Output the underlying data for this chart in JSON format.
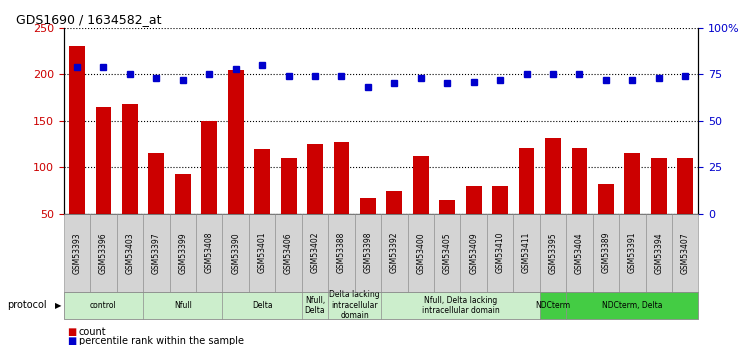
{
  "title": "GDS1690 / 1634582_at",
  "samples": [
    "GSM53393",
    "GSM53396",
    "GSM53403",
    "GSM53397",
    "GSM53399",
    "GSM53408",
    "GSM53390",
    "GSM53401",
    "GSM53406",
    "GSM53402",
    "GSM53388",
    "GSM53398",
    "GSM53392",
    "GSM53400",
    "GSM53405",
    "GSM53409",
    "GSM53410",
    "GSM53411",
    "GSM53395",
    "GSM53404",
    "GSM53389",
    "GSM53391",
    "GSM53394",
    "GSM53407"
  ],
  "counts": [
    230,
    165,
    168,
    115,
    93,
    150,
    205,
    120,
    110,
    125,
    127,
    67,
    75,
    112,
    65,
    80,
    80,
    121,
    131,
    121,
    82,
    115,
    110,
    110
  ],
  "percentiles": [
    79,
    79,
    75,
    73,
    72,
    75,
    78,
    80,
    74,
    74,
    74,
    68,
    70,
    73,
    70,
    71,
    72,
    75,
    75,
    75,
    72,
    72,
    73,
    74
  ],
  "bar_color": "#cc0000",
  "dot_color": "#0000cc",
  "protocol_groups": [
    {
      "label": "control",
      "start": 0,
      "end": 2,
      "color": "#cceecc"
    },
    {
      "label": "Nfull",
      "start": 3,
      "end": 5,
      "color": "#cceecc"
    },
    {
      "label": "Delta",
      "start": 6,
      "end": 8,
      "color": "#cceecc"
    },
    {
      "label": "Nfull,\nDelta",
      "start": 9,
      "end": 9,
      "color": "#cceecc"
    },
    {
      "label": "Delta lacking\nintracellular\ndomain",
      "start": 10,
      "end": 11,
      "color": "#cceecc"
    },
    {
      "label": "Nfull, Delta lacking\nintracellular domain",
      "start": 12,
      "end": 17,
      "color": "#cceecc"
    },
    {
      "label": "NDCterm",
      "start": 18,
      "end": 18,
      "color": "#44cc44"
    },
    {
      "label": "NDCterm, Delta",
      "start": 19,
      "end": 23,
      "color": "#44cc44"
    }
  ],
  "ylim_left": [
    50,
    250
  ],
  "ylim_right": [
    0,
    100
  ],
  "yticks_left": [
    50,
    100,
    150,
    200,
    250
  ],
  "yticks_right": [
    0,
    25,
    50,
    75,
    100
  ],
  "ytick_labels_right": [
    "0",
    "25",
    "50",
    "75",
    "100%"
  ],
  "background_color": "#ffffff",
  "grid_color": "#000000",
  "grid_style": "dotted"
}
